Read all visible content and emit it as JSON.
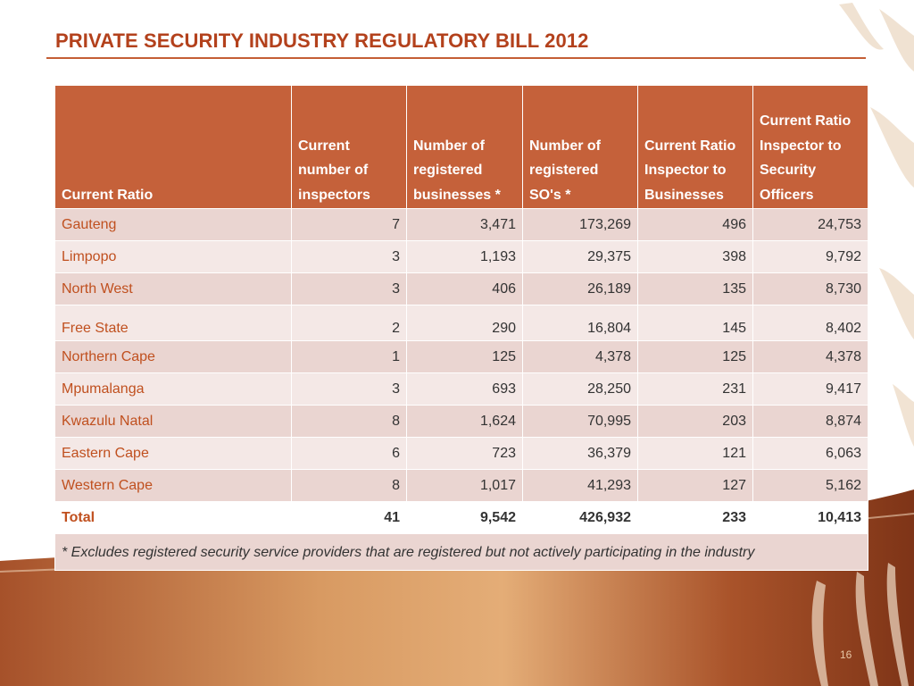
{
  "slide": {
    "title": "PRIVATE SECURITY INDUSTRY REGULATORY BILL 2012",
    "page_number": "16"
  },
  "colors": {
    "title": "#b3411c",
    "header_bg": "#c5613a",
    "row_dark": "#ead5d1",
    "row_light": "#f4e8e6",
    "label_text": "#c0501f"
  },
  "table": {
    "headers": [
      "Current Ratio",
      "Current number of inspectors",
      "Number of registered businesses *",
      "Number of registered SO's *",
      "Current Ratio Inspector to Businesses",
      "Current Ratio Inspector to Security Officers"
    ],
    "rows": [
      {
        "province": "Gauteng",
        "inspectors": "7",
        "businesses": "3,471",
        "officers": "173,269",
        "ratio_businesses": "496",
        "ratio_officers": "24,753"
      },
      {
        "province": "Limpopo",
        "inspectors": "3",
        "businesses": "1,193",
        "officers": "29,375",
        "ratio_businesses": "398",
        "ratio_officers": "9,792"
      },
      {
        "province": "North West",
        "inspectors": "3",
        "businesses": "406",
        "officers": "26,189",
        "ratio_businesses": "135",
        "ratio_officers": "8,730"
      },
      {
        "province": "Free State",
        "inspectors": "2",
        "businesses": "290",
        "officers": "16,804",
        "ratio_businesses": "145",
        "ratio_officers": "8,402"
      },
      {
        "province": "Northern Cape",
        "inspectors": "1",
        "businesses": "125",
        "officers": "4,378",
        "ratio_businesses": "125",
        "ratio_officers": "4,378"
      },
      {
        "province": "Mpumalanga",
        "inspectors": "3",
        "businesses": "693",
        "officers": "28,250",
        "ratio_businesses": "231",
        "ratio_officers": "9,417"
      },
      {
        "province": "Kwazulu Natal",
        "inspectors": "8",
        "businesses": "1,624",
        "officers": "70,995",
        "ratio_businesses": "203",
        "ratio_officers": "8,874"
      },
      {
        "province": "Eastern Cape",
        "inspectors": "6",
        "businesses": "723",
        "officers": "36,379",
        "ratio_businesses": "121",
        "ratio_officers": "6,063"
      },
      {
        "province": "Western Cape",
        "inspectors": "8",
        "businesses": "1,017",
        "officers": "41,293",
        "ratio_businesses": "127",
        "ratio_officers": "5,162"
      }
    ],
    "total": {
      "label": "Total",
      "inspectors": "41",
      "businesses": "9,542",
      "officers": "426,932",
      "ratio_businesses": "233",
      "ratio_officers": "10,413"
    },
    "footnote": "*  Excludes registered security service providers that are registered but not actively participating in the industry"
  }
}
